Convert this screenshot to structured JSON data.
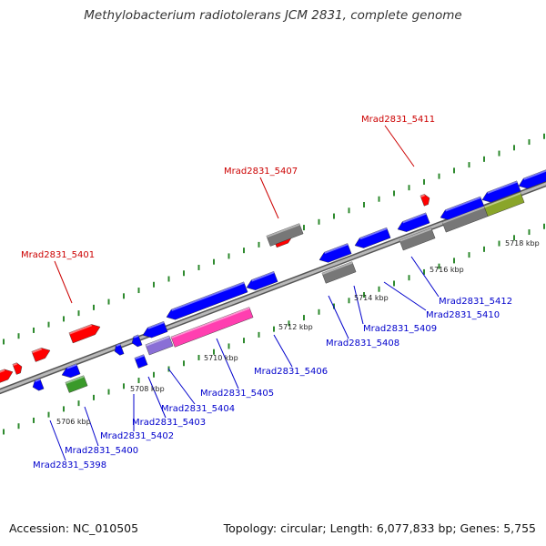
{
  "title": "Methylobacterium radiotolerans JCM 2831, complete genome",
  "footer": {
    "accession": "Accession: NC_010505",
    "stats": "Topology: circular; Length: 6,077,833 bp; Genes: 5,755"
  },
  "colors": {
    "forward": "#ff0000",
    "reverse": "#0000ff",
    "gray": "#777777",
    "purple": "#8a6fd6",
    "pink": "#ff3fb0",
    "green": "#3a9a2a",
    "olive": "#8aa52a",
    "backbone": "#9a9a9a",
    "dots": "#2e8a2e",
    "label_red": "#cc0000",
    "label_blue": "#0000cc"
  },
  "ticks": [
    "5706 kbp",
    "5708 kbp",
    "5710 kbp",
    "5712 kbp",
    "5714 kbp",
    "5716 kbp",
    "5718 kbp"
  ],
  "gene_labels": {
    "g5398": "Mrad2831_5398",
    "g5400": "Mrad2831_5400",
    "g5401": "Mrad2831_5401",
    "g5402": "Mrad2831_5402",
    "g5403": "Mrad2831_5403",
    "g5404": "Mrad2831_5404",
    "g5405": "Mrad2831_5405",
    "g5406": "Mrad2831_5406",
    "g5407": "Mrad2831_5407",
    "g5408": "Mrad2831_5408",
    "g5409": "Mrad2831_5409",
    "g5410": "Mrad2831_5410",
    "g5411": "Mrad2831_5411",
    "g5412": "Mrad2831_5412"
  }
}
